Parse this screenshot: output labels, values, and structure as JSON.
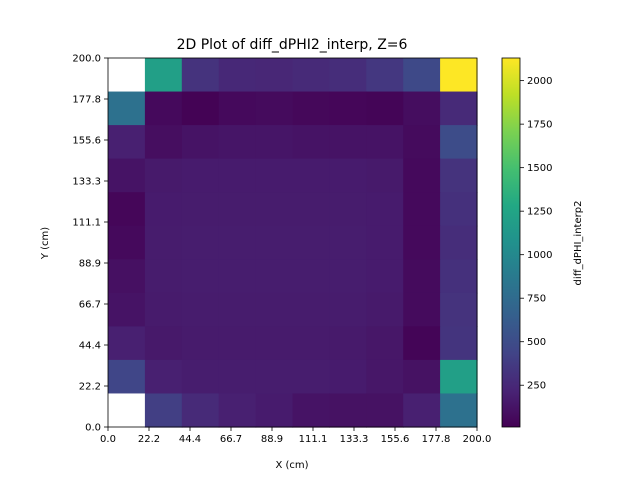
{
  "chart_data": {
    "type": "heatmap",
    "title": "2D Plot of diff_dPHI2_interp, Z=6",
    "xlabel": "X (cm)",
    "ylabel": "Y (cm)",
    "colorbar_label": "diff_dPHI_interp2",
    "colormap": "viridis",
    "vmin": 10,
    "vmax": 2130,
    "xlim": [
      0.0,
      200.0
    ],
    "ylim": [
      0.0,
      200.0
    ],
    "x_tick_labels": [
      "0.0",
      "22.2",
      "44.4",
      "66.7",
      "88.9",
      "111.1",
      "133.3",
      "155.6",
      "177.8",
      "200.0"
    ],
    "y_tick_labels": [
      "0.0",
      "22.2",
      "44.4",
      "66.7",
      "88.9",
      "111.1",
      "133.3",
      "155.6",
      "177.8",
      "200.0"
    ],
    "colorbar_ticks": [
      250,
      500,
      750,
      1000,
      1250,
      1500,
      1750,
      2000
    ],
    "colorbar_tick_labels": [
      "250",
      "500",
      "750",
      "1000",
      "1250",
      "1500",
      "1750",
      "2000"
    ],
    "grid": false,
    "rows_top_to_bottom": [
      [
        null,
        1200,
        320,
        250,
        240,
        260,
        280,
        350,
        480,
        2130
      ],
      [
        800,
        60,
        20,
        60,
        70,
        50,
        40,
        30,
        80,
        260
      ],
      [
        200,
        90,
        120,
        130,
        130,
        120,
        120,
        120,
        70,
        500
      ],
      [
        120,
        160,
        170,
        170,
        170,
        170,
        170,
        160,
        60,
        320
      ],
      [
        40,
        170,
        175,
        175,
        175,
        175,
        175,
        170,
        60,
        300
      ],
      [
        60,
        175,
        180,
        180,
        180,
        180,
        180,
        170,
        60,
        280
      ],
      [
        100,
        175,
        180,
        180,
        180,
        180,
        180,
        170,
        70,
        300
      ],
      [
        120,
        165,
        175,
        175,
        175,
        175,
        175,
        160,
        70,
        320
      ],
      [
        200,
        155,
        165,
        165,
        165,
        165,
        160,
        140,
        30,
        330
      ],
      [
        450,
        200,
        180,
        180,
        180,
        180,
        170,
        140,
        110,
        1200
      ],
      [
        null,
        400,
        260,
        200,
        170,
        120,
        110,
        110,
        200,
        800
      ]
    ],
    "rows_top_to_bottom_cols": 10
  }
}
